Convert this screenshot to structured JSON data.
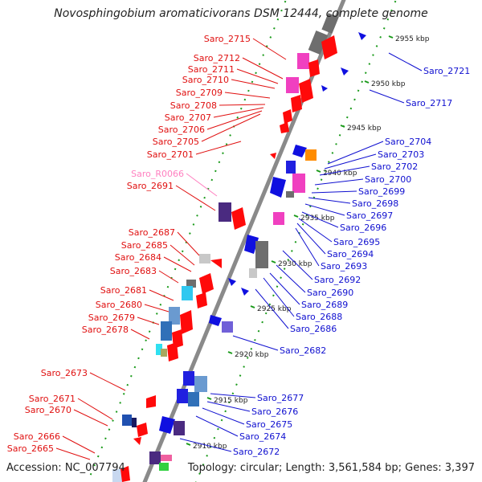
{
  "title": "Novosphingobium aromaticivorans DSM 12444, complete genome",
  "footer": {
    "accession": "Accession: NC_007794",
    "summary": "Topology: circular; Length: 3,561,584 bp; Genes: 3,397"
  },
  "colors": {
    "left_label": "#e01010",
    "right_label": "#1010d0",
    "rna_label": "#ff80c0",
    "backbone": "#8a8a8a",
    "tick": "#1a9a1a"
  },
  "ticks": [
    {
      "label": "2955 kbp",
      "pos": 2955
    },
    {
      "label": "2950 kbp",
      "pos": 2950
    },
    {
      "label": "2945 kbp",
      "pos": 2945
    },
    {
      "label": "2940 kbp",
      "pos": 2940
    },
    {
      "label": "2935 kbp",
      "pos": 2935
    },
    {
      "label": "2930 kbp",
      "pos": 2930
    },
    {
      "label": "2925 kbp",
      "pos": 2925
    },
    {
      "label": "2920 kbp",
      "pos": 2920
    },
    {
      "label": "2915 kbp",
      "pos": 2915
    },
    {
      "label": "2910 kbp",
      "pos": 2910
    }
  ],
  "left_labels": [
    {
      "text": "Saro_2715",
      "type": "cds"
    },
    {
      "text": "Saro_2712",
      "type": "cds"
    },
    {
      "text": "Saro_2711",
      "type": "cds"
    },
    {
      "text": "Saro_2710",
      "type": "cds"
    },
    {
      "text": "Saro_2709",
      "type": "cds"
    },
    {
      "text": "Saro_2708",
      "type": "cds"
    },
    {
      "text": "Saro_2707",
      "type": "cds"
    },
    {
      "text": "Saro_2706",
      "type": "cds"
    },
    {
      "text": "Saro_2705",
      "type": "cds"
    },
    {
      "text": "Saro_2701",
      "type": "cds"
    },
    {
      "text": "Saro_R0066",
      "type": "rna"
    },
    {
      "text": "Saro_2691",
      "type": "cds"
    },
    {
      "text": "Saro_2687",
      "type": "cds"
    },
    {
      "text": "Saro_2685",
      "type": "cds"
    },
    {
      "text": "Saro_2684",
      "type": "cds"
    },
    {
      "text": "Saro_2683",
      "type": "cds"
    },
    {
      "text": "Saro_2681",
      "type": "cds"
    },
    {
      "text": "Saro_2680",
      "type": "cds"
    },
    {
      "text": "Saro_2679",
      "type": "cds"
    },
    {
      "text": "Saro_2678",
      "type": "cds"
    },
    {
      "text": "Saro_2673",
      "type": "cds"
    },
    {
      "text": "Saro_2671",
      "type": "cds"
    },
    {
      "text": "Saro_2670",
      "type": "cds"
    },
    {
      "text": "Saro_2666",
      "type": "cds"
    },
    {
      "text": "Saro_2665",
      "type": "cds"
    }
  ],
  "right_labels": [
    {
      "text": "Saro_2721"
    },
    {
      "text": "Saro_2717"
    },
    {
      "text": "Saro_2704"
    },
    {
      "text": "Saro_2703"
    },
    {
      "text": "Saro_2702"
    },
    {
      "text": "Saro_2700"
    },
    {
      "text": "Saro_2699"
    },
    {
      "text": "Saro_2698"
    },
    {
      "text": "Saro_2697"
    },
    {
      "text": "Saro_2696"
    },
    {
      "text": "Saro_2695"
    },
    {
      "text": "Saro_2694"
    },
    {
      "text": "Saro_2693"
    },
    {
      "text": "Saro_2692"
    },
    {
      "text": "Saro_2690"
    },
    {
      "text": "Saro_2689"
    },
    {
      "text": "Saro_2688"
    },
    {
      "text": "Saro_2686"
    },
    {
      "text": "Saro_2682"
    },
    {
      "text": "Saro_2677"
    },
    {
      "text": "Saro_2676"
    },
    {
      "text": "Saro_2675"
    },
    {
      "text": "Saro_2674"
    },
    {
      "text": "Saro_2672"
    }
  ]
}
